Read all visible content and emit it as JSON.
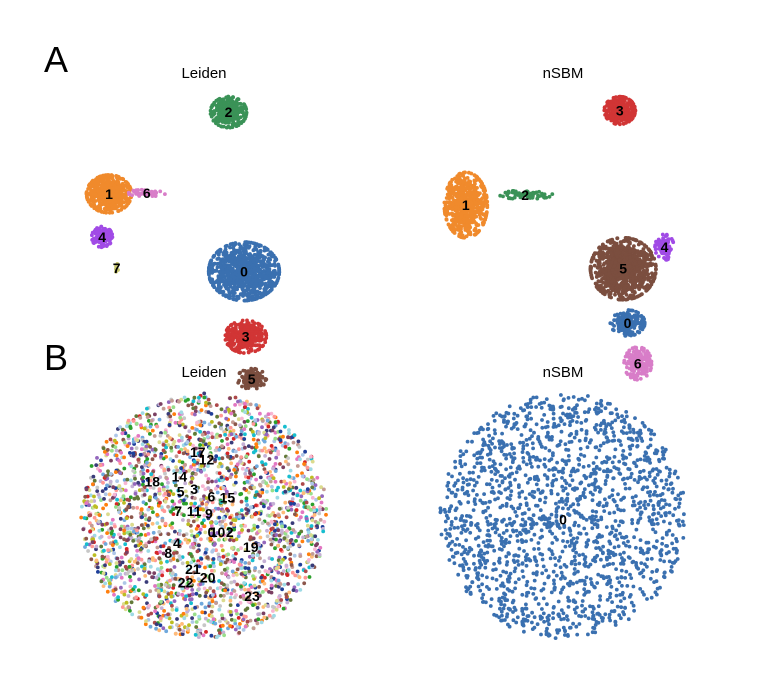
{
  "figure": {
    "panel_letters": [
      "A",
      "B"
    ]
  },
  "chart_data": [
    {
      "type": "scatter",
      "panel": "A",
      "title": "Leiden",
      "clusters": [
        {
          "label": "0",
          "x": 0.0,
          "y": -0.62,
          "rx": 0.41,
          "ry": 0.34,
          "n": 900,
          "color": "#3a70b0"
        },
        {
          "label": "1",
          "x": -1.57,
          "y": 0.28,
          "rx": 0.26,
          "ry": 0.22,
          "n": 520,
          "color": "#f08a2c"
        },
        {
          "label": "2",
          "x": -0.18,
          "y": 1.23,
          "rx": 0.21,
          "ry": 0.18,
          "n": 300,
          "color": "#3a9257"
        },
        {
          "label": "3",
          "x": 0.02,
          "y": -1.38,
          "rx": 0.24,
          "ry": 0.19,
          "n": 330,
          "color": "#d13535"
        },
        {
          "label": "4",
          "x": -1.65,
          "y": -0.22,
          "rx": 0.12,
          "ry": 0.12,
          "n": 140,
          "color": "#a14be6"
        },
        {
          "label": "5",
          "x": 0.09,
          "y": -1.87,
          "rx": 0.17,
          "ry": 0.12,
          "n": 140,
          "color": "#7b4e3f"
        },
        {
          "label": "6",
          "x": -1.13,
          "y": 0.29,
          "rx": 0.22,
          "ry": 0.04,
          "n": 45,
          "color": "#d87dc8"
        },
        {
          "label": "7",
          "x": -1.48,
          "y": -0.58,
          "rx": 0.02,
          "ry": 0.05,
          "n": 10,
          "color": "#c8c76e"
        }
      ]
    },
    {
      "type": "scatter",
      "panel": "A",
      "title": "nSBM",
      "clusters": [
        {
          "label": "0",
          "x": 0.32,
          "y": -1.22,
          "rx": 0.2,
          "ry": 0.15,
          "n": 180,
          "color": "#3a70b0"
        },
        {
          "label": "1",
          "x": -1.56,
          "y": 0.15,
          "rx": 0.25,
          "ry": 0.38,
          "n": 620,
          "color": "#f08a2c"
        },
        {
          "label": "2",
          "x": -0.87,
          "y": 0.27,
          "rx": 0.32,
          "ry": 0.05,
          "n": 70,
          "color": "#3a9257"
        },
        {
          "label": "3",
          "x": 0.23,
          "y": 1.25,
          "rx": 0.18,
          "ry": 0.16,
          "n": 280,
          "color": "#d13535"
        },
        {
          "label": "4",
          "x": 0.75,
          "y": -0.34,
          "rx": 0.11,
          "ry": 0.15,
          "n": 90,
          "color": "#a14be6"
        },
        {
          "label": "5",
          "x": 0.27,
          "y": -0.59,
          "rx": 0.38,
          "ry": 0.36,
          "n": 950,
          "color": "#7b4e3f"
        },
        {
          "label": "6",
          "x": 0.44,
          "y": -1.69,
          "rx": 0.16,
          "ry": 0.19,
          "n": 180,
          "color": "#d87dc8"
        }
      ]
    },
    {
      "type": "scatter",
      "panel": "B",
      "title": "Leiden",
      "radius": 2.0,
      "n_points": 2400,
      "palette": [
        "#1f3f9a",
        "#7b3f62",
        "#6fa8dc",
        "#c5b0d5",
        "#f7b6d2",
        "#98df8a",
        "#17becf",
        "#d62728",
        "#ff9896",
        "#2ca02c",
        "#e377c2",
        "#9edae5",
        "#bcbd22",
        "#aec7e8",
        "#c49c94",
        "#ff7f0e",
        "#8c564b",
        "#dbdb8d",
        "#9467bd",
        "#c7c7c7",
        "#ffbb78",
        "#393b79",
        "#ad494a",
        "#637939"
      ],
      "labels": [
        {
          "label": "17",
          "x": -0.05,
          "y": 0.52
        },
        {
          "label": "12",
          "x": 0.02,
          "y": 0.46
        },
        {
          "label": "18",
          "x": -0.42,
          "y": 0.28
        },
        {
          "label": "14",
          "x": -0.2,
          "y": 0.32
        },
        {
          "label": "3",
          "x": -0.08,
          "y": 0.22
        },
        {
          "label": "5",
          "x": -0.19,
          "y": 0.2
        },
        {
          "label": "6",
          "x": 0.06,
          "y": 0.16
        },
        {
          "label": "15",
          "x": 0.19,
          "y": 0.15
        },
        {
          "label": "7",
          "x": -0.21,
          "y": 0.04
        },
        {
          "label": "11",
          "x": -0.08,
          "y": 0.04
        },
        {
          "label": "9",
          "x": 0.04,
          "y": 0.02
        },
        {
          "label": "0",
          "x": 0.06,
          "y": -0.13
        },
        {
          "label": "10",
          "x": 0.11,
          "y": -0.13
        },
        {
          "label": "2",
          "x": 0.21,
          "y": -0.13
        },
        {
          "label": "19",
          "x": 0.38,
          "y": -0.25
        },
        {
          "label": "4",
          "x": -0.22,
          "y": -0.22
        },
        {
          "label": "8",
          "x": -0.29,
          "y": -0.3
        },
        {
          "label": "21",
          "x": -0.09,
          "y": -0.43
        },
        {
          "label": "20",
          "x": 0.03,
          "y": -0.5
        },
        {
          "label": "22",
          "x": -0.15,
          "y": -0.54
        },
        {
          "label": "23",
          "x": 0.39,
          "y": -0.65
        }
      ]
    },
    {
      "type": "scatter",
      "panel": "B",
      "title": "nSBM",
      "radius": 2.0,
      "n_points": 1700,
      "color": "#3a70b0",
      "labels": [
        {
          "label": "0",
          "x": 0.0,
          "y": -0.03
        }
      ]
    }
  ]
}
